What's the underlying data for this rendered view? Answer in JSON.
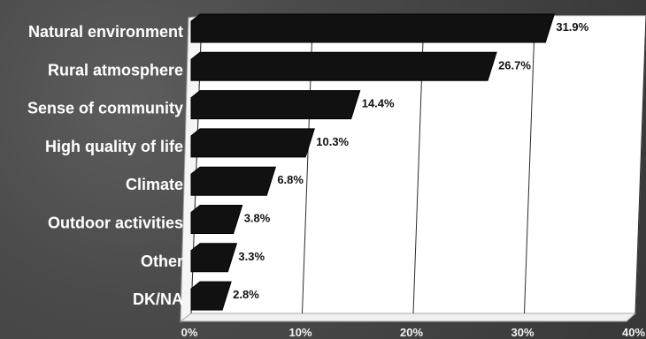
{
  "chart_data": {
    "type": "bar",
    "orientation": "horizontal",
    "categories": [
      "Natural environment",
      "Rural atmosphere",
      "Sense of community",
      "High quality of life",
      "Climate",
      "Outdoor activities",
      "Other",
      "DK/NA"
    ],
    "values": [
      31.9,
      26.7,
      14.4,
      10.3,
      6.8,
      3.8,
      3.3,
      2.8
    ],
    "value_labels": [
      "31.9%",
      "26.7%",
      "14.4%",
      "10.3%",
      "6.8%",
      "3.8%",
      "3.3%",
      "2.8%"
    ],
    "x_ticks": [
      0,
      10,
      20,
      30,
      40
    ],
    "x_tick_labels": [
      "0%",
      "10%",
      "20%",
      "30%",
      "40%"
    ],
    "xlim": [
      0,
      40
    ],
    "grid": "vertical",
    "legend": "none",
    "title": "",
    "xlabel": "",
    "ylabel": "",
    "colors": {
      "bar": "#111111",
      "plot_background": "#ffffff",
      "grid": "#2b2b2b",
      "page_background": "#4f4f4f",
      "category_text": "#ffffff",
      "tick_text": "#f2f2f2",
      "value_text": "#111111"
    }
  }
}
